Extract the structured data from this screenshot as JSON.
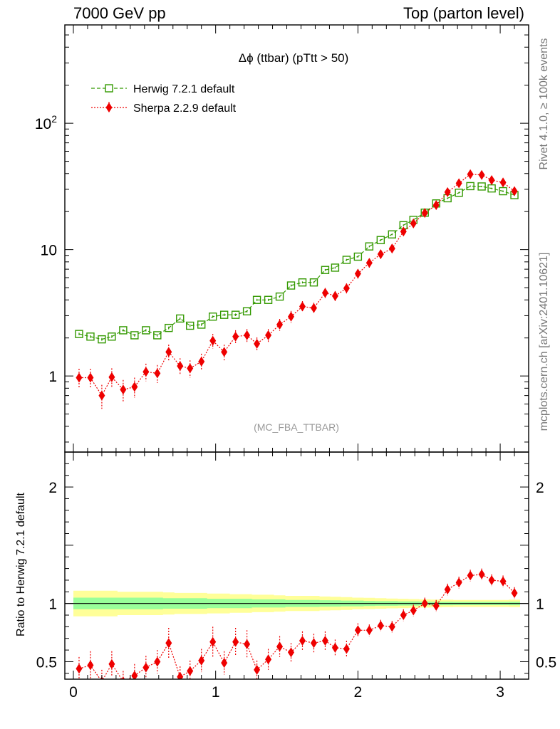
{
  "header": {
    "left": "7000 GeV pp",
    "right": "Top (parton level)"
  },
  "side_text": {
    "rivet": "Rivet 4.1.0, ≥ 100k events",
    "mcplots": "mcplots.cern.ch [arXiv:2401.10621]"
  },
  "chart_data": [
    {
      "type": "line",
      "panel": "main",
      "title": "Δϕ (ttbar) (pTtt > 50)",
      "watermark": "(MC_FBA_TTBAR)",
      "yscale": "log",
      "ylim": [
        0.25,
        600
      ],
      "xlim": [
        -0.06,
        3.2
      ],
      "y_tick_labels": [
        {
          "value": 1,
          "label": "1"
        },
        {
          "value": 10,
          "label": "10"
        },
        {
          "value": 100,
          "label": "10^2"
        }
      ],
      "legend_position": "top-left",
      "x": [
        0.04,
        0.12,
        0.2,
        0.27,
        0.35,
        0.43,
        0.51,
        0.59,
        0.67,
        0.75,
        0.82,
        0.9,
        0.98,
        1.06,
        1.14,
        1.22,
        1.29,
        1.37,
        1.45,
        1.53,
        1.61,
        1.69,
        1.77,
        1.84,
        1.92,
        2.0,
        2.08,
        2.16,
        2.24,
        2.32,
        2.39,
        2.47,
        2.55,
        2.63,
        2.71,
        2.79,
        2.87,
        2.94,
        3.02,
        3.1
      ],
      "series": [
        {
          "name": "Herwig 7.2.1 default",
          "color": "#339900",
          "marker": "open-square",
          "line": "dashed",
          "values": [
            2.15,
            2.05,
            1.95,
            2.05,
            2.3,
            2.1,
            2.3,
            2.1,
            2.4,
            2.85,
            2.5,
            2.55,
            2.95,
            3.05,
            3.05,
            3.25,
            4.0,
            4.0,
            4.25,
            5.2,
            5.5,
            5.5,
            6.9,
            7.2,
            8.3,
            8.8,
            10.6,
            11.9,
            13.2,
            15.6,
            17.2,
            19.6,
            23.2,
            25.5,
            28.2,
            31.8,
            31.6,
            30.5,
            29.0,
            27.0
          ],
          "errors": [
            0.05,
            0.05,
            0.05,
            0.05,
            0.05,
            0.05,
            0.05,
            0.05,
            0.06,
            0.06,
            0.06,
            0.06,
            0.06,
            0.07,
            0.07,
            0.07,
            0.08,
            0.08,
            0.08,
            0.1,
            0.1,
            0.1,
            0.12,
            0.13,
            0.14,
            0.15,
            0.17,
            0.19,
            0.2,
            0.23,
            0.25,
            0.28,
            0.32,
            0.35,
            0.38,
            0.42,
            0.42,
            0.41,
            0.4,
            0.38
          ]
        },
        {
          "name": "Sherpa 2.2.9 default",
          "color": "#ee0000",
          "marker": "filled-diamond",
          "line": "dotted",
          "values": [
            0.97,
            0.97,
            0.7,
            0.98,
            0.78,
            0.82,
            1.08,
            1.05,
            1.55,
            1.2,
            1.15,
            1.3,
            1.9,
            1.55,
            2.05,
            2.1,
            1.8,
            2.1,
            2.55,
            2.95,
            3.55,
            3.45,
            4.55,
            4.3,
            4.95,
            6.45,
            7.85,
            9.2,
            10.2,
            13.9,
            16.1,
            19.5,
            22.5,
            28.5,
            33.5,
            39.5,
            39.0,
            35.5,
            34.0,
            29.0
          ],
          "errors": [
            0.17,
            0.17,
            0.15,
            0.17,
            0.15,
            0.15,
            0.17,
            0.17,
            0.22,
            0.18,
            0.18,
            0.2,
            0.25,
            0.22,
            0.25,
            0.25,
            0.22,
            0.25,
            0.28,
            0.32,
            0.36,
            0.35,
            0.42,
            0.4,
            0.45,
            0.55,
            0.65,
            0.75,
            0.8,
            1.0,
            1.1,
            1.3,
            1.5,
            1.8,
            2.0,
            2.3,
            2.3,
            2.1,
            2.0,
            1.8
          ]
        }
      ]
    },
    {
      "type": "line",
      "panel": "ratio",
      "ylabel": "Ratio to Herwig 7.2.1 default",
      "ylim": [
        0.35,
        2.3
      ],
      "xlim": [
        -0.06,
        3.2
      ],
      "y_ticks": [
        0.5,
        1,
        2
      ],
      "y_tick_labels": [
        "0.5",
        "1",
        "2"
      ],
      "x_ticks": [
        0,
        1,
        2,
        3
      ],
      "x_tick_labels": [
        "0",
        "1",
        "2",
        "3"
      ],
      "reference_line": 1,
      "band_colors": {
        "inner": "#99ff99",
        "outer": "#ffff99"
      },
      "band_inner": [
        0.05,
        0.05,
        0.05,
        0.05,
        0.05,
        0.05,
        0.05,
        0.05,
        0.045,
        0.045,
        0.045,
        0.045,
        0.04,
        0.04,
        0.04,
        0.04,
        0.035,
        0.035,
        0.035,
        0.03,
        0.03,
        0.03,
        0.028,
        0.027,
        0.025,
        0.025,
        0.022,
        0.02,
        0.02,
        0.018,
        0.018,
        0.016,
        0.015,
        0.015,
        0.014,
        0.014,
        0.014,
        0.014,
        0.014,
        0.015
      ],
      "band_outer": [
        0.11,
        0.11,
        0.11,
        0.11,
        0.1,
        0.1,
        0.1,
        0.1,
        0.095,
        0.09,
        0.09,
        0.09,
        0.085,
        0.085,
        0.08,
        0.08,
        0.075,
        0.075,
        0.07,
        0.065,
        0.065,
        0.065,
        0.06,
        0.058,
        0.055,
        0.05,
        0.048,
        0.045,
        0.042,
        0.04,
        0.038,
        0.035,
        0.033,
        0.032,
        0.03,
        0.03,
        0.03,
        0.03,
        0.03,
        0.032
      ],
      "series": [
        {
          "name": "Sherpa 2.2.9 default",
          "color": "#ee0000",
          "values": [
            0.44,
            0.47,
            0.33,
            0.48,
            0.33,
            0.38,
            0.45,
            0.5,
            0.66,
            0.37,
            0.42,
            0.51,
            0.67,
            0.49,
            0.67,
            0.65,
            0.43,
            0.52,
            0.63,
            0.58,
            0.68,
            0.66,
            0.68,
            0.62,
            0.61,
            0.77,
            0.77,
            0.81,
            0.8,
            0.9,
            0.94,
            1.0,
            0.98,
            1.12,
            1.18,
            1.24,
            1.25,
            1.2,
            1.19,
            1.09
          ],
          "errors": [
            0.1,
            0.12,
            0.1,
            0.11,
            0.09,
            0.1,
            0.1,
            0.1,
            0.13,
            0.09,
            0.09,
            0.1,
            0.13,
            0.1,
            0.12,
            0.12,
            0.08,
            0.09,
            0.09,
            0.08,
            0.08,
            0.08,
            0.08,
            0.07,
            0.07,
            0.06,
            0.05,
            0.05,
            0.05,
            0.05,
            0.05,
            0.05,
            0.05,
            0.05,
            0.05,
            0.05,
            0.05,
            0.05,
            0.05,
            0.05
          ]
        }
      ]
    }
  ]
}
